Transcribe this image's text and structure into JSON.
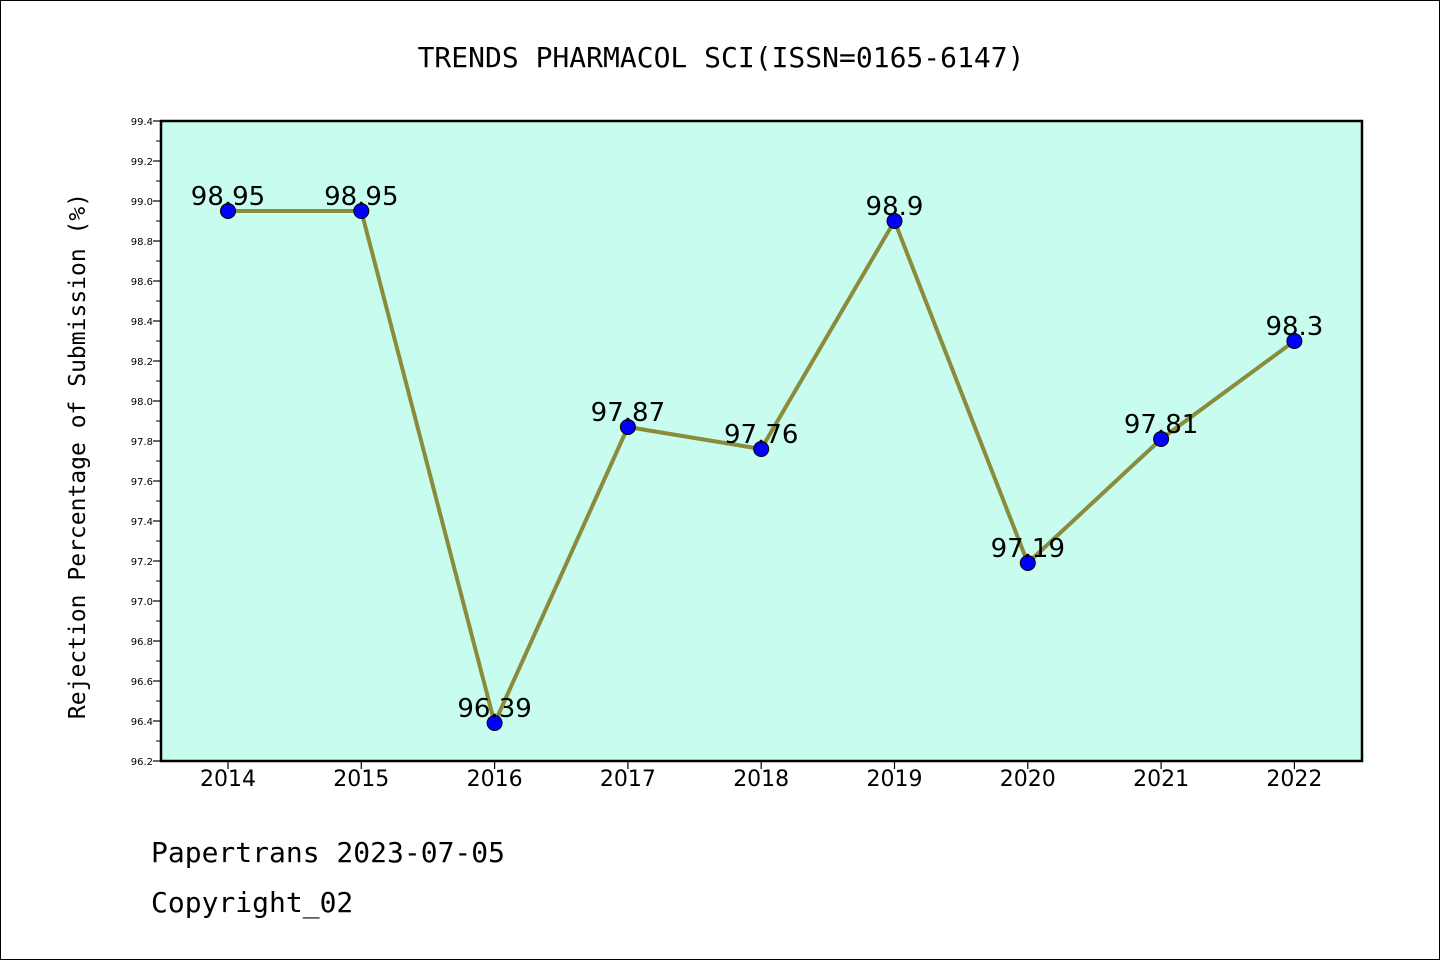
{
  "chart_data": {
    "type": "line",
    "title": "TRENDS PHARMACOL SCI(ISSN=0165-6147)",
    "xlabel": "",
    "ylabel": "Rejection Percentage of Submission (%)",
    "categories": [
      "2014",
      "2015",
      "2016",
      "2017",
      "2018",
      "2019",
      "2020",
      "2021",
      "2022"
    ],
    "values": [
      98.95,
      98.95,
      96.39,
      97.87,
      97.76,
      98.9,
      97.19,
      97.81,
      98.3
    ],
    "data_labels": [
      "98.95",
      "98.95",
      "96.39",
      "97.87",
      "97.76",
      "98.9",
      "97.19",
      "97.81",
      "98.3"
    ],
    "ylim": [
      96.2,
      99.4
    ],
    "yticks": [
      "96.2",
      "96.4",
      "96.6",
      "96.8",
      "97.0",
      "97.2",
      "97.4",
      "97.6",
      "97.8",
      "98.0",
      "98.2",
      "98.4",
      "98.6",
      "98.8",
      "99.0",
      "99.2",
      "99.4"
    ],
    "grid": false,
    "colors": {
      "plot_background": "#c8fcee",
      "line": "#8b8b3c",
      "marker": "#0000ff",
      "axis": "#000000"
    }
  },
  "footer": {
    "line1": "Papertrans 2023-07-05",
    "line2": "Copyright_02"
  }
}
